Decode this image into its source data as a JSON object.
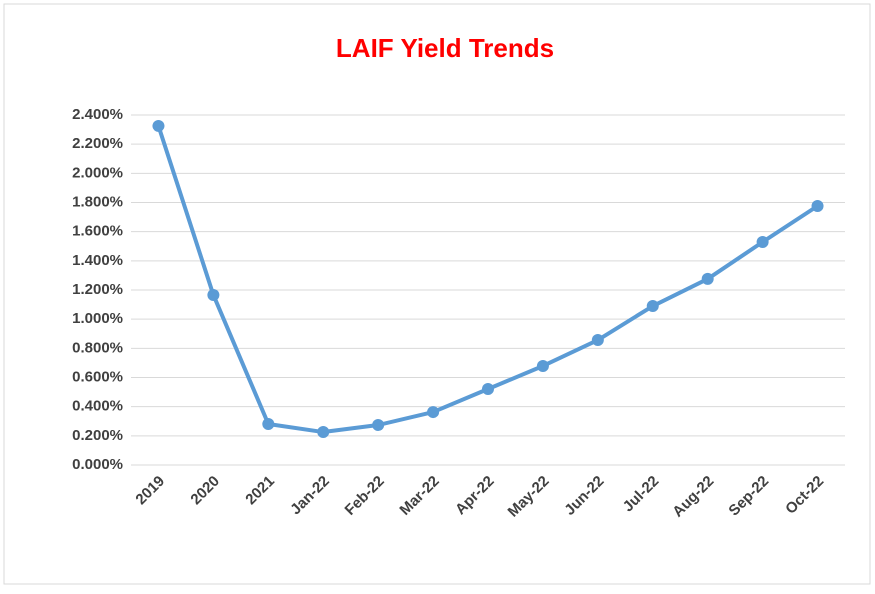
{
  "chart_data": {
    "type": "line",
    "title": "LAIF Yield Trends",
    "categories": [
      "2019",
      "2020",
      "2021",
      "Jan-22",
      "Feb-22",
      "Mar-22",
      "Apr-22",
      "May-22",
      "Jun-22",
      "Jul-22",
      "Aug-22",
      "Sep-22",
      "Oct-22"
    ],
    "series": [
      {
        "name": "LAIF Yield",
        "color": "#5b9bd5",
        "values": [
          2.325,
          1.166,
          0.281,
          0.226,
          0.274,
          0.363,
          0.521,
          0.679,
          0.857,
          1.09,
          1.276,
          1.529,
          1.776
        ]
      }
    ],
    "ylim": [
      0,
      2.4
    ],
    "yticks": [
      {
        "value": 0,
        "label": "0.000%"
      },
      {
        "value": 0.2,
        "label": "0.200%"
      },
      {
        "value": 0.4,
        "label": "0.400%"
      },
      {
        "value": 0.6,
        "label": "0.600%"
      },
      {
        "value": 0.8,
        "label": "0.800%"
      },
      {
        "value": 1.0,
        "label": "1.000%"
      },
      {
        "value": 1.2,
        "label": "1.200%"
      },
      {
        "value": 1.4,
        "label": "1.400%"
      },
      {
        "value": 1.6,
        "label": "1.600%"
      },
      {
        "value": 1.8,
        "label": "1.800%"
      },
      {
        "value": 2.0,
        "label": "2.000%"
      },
      {
        "value": 2.2,
        "label": "2.200%"
      },
      {
        "value": 2.4,
        "label": "2.400%"
      }
    ],
    "grid": true
  }
}
